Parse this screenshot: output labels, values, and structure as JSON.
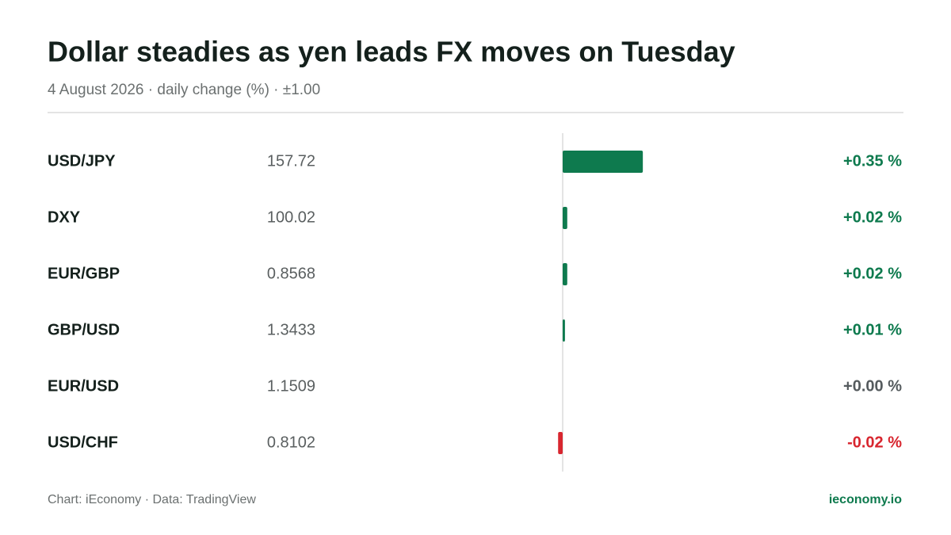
{
  "chart_data": {
    "type": "bar",
    "orientation": "horizontal",
    "title": "Dollar steadies as yen leads FX moves on Tuesday",
    "subtitle": "4 August 2026 · daily change (%) · ±1.00",
    "categories": [
      "USD/JPY",
      "DXY",
      "EUR/GBP",
      "GBP/USD",
      "EUR/USD",
      "USD/CHF"
    ],
    "prices": [
      157.72,
      100.02,
      0.8568,
      1.3433,
      1.1509,
      0.8102
    ],
    "values": [
      0.35,
      0.02,
      0.02,
      0.01,
      0.0,
      -0.02
    ],
    "value_labels": [
      "+0.35 %",
      "+0.02 %",
      "+0.02 %",
      "+0.01 %",
      "+0.00 %",
      "-0.02 %"
    ],
    "xlim": [
      -1,
      1
    ],
    "color": "#0e7a4e",
    "negative_color": "#d8262f",
    "zero_color": "#555b5e",
    "source": "Chart: iEconomy · Data: TradingView",
    "brand": "ieconomy.io"
  }
}
